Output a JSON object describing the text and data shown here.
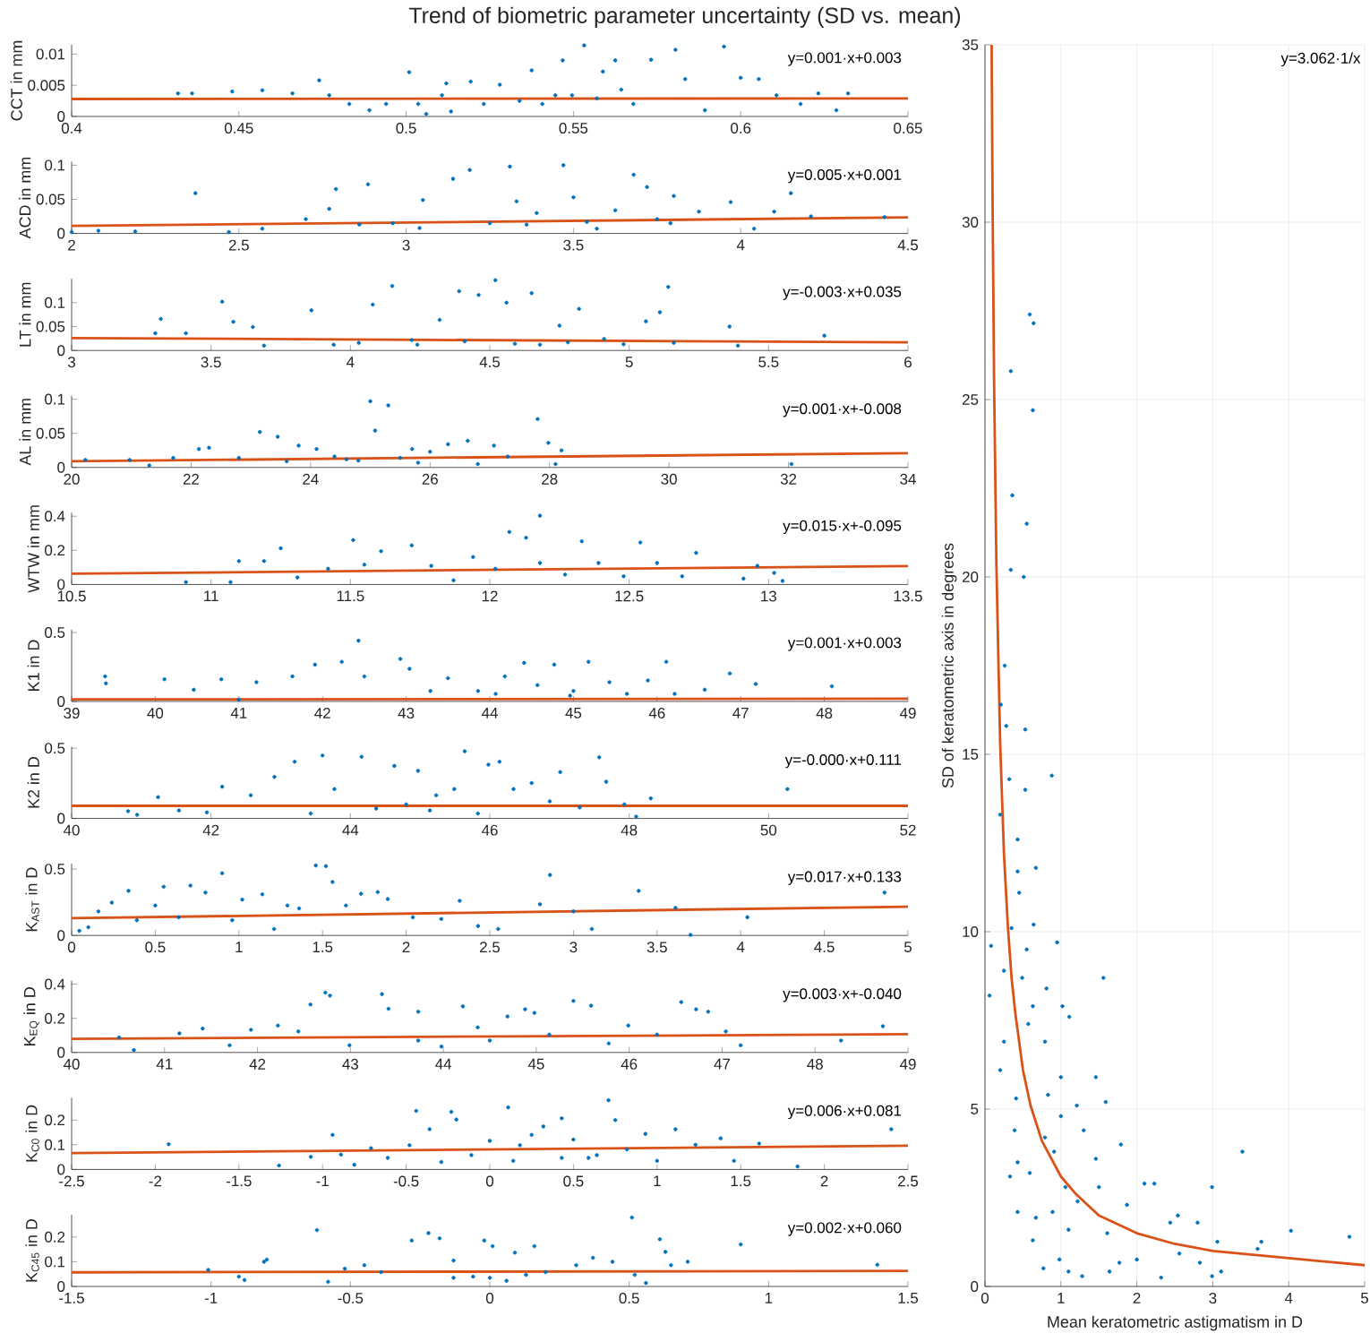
{
  "chart_data": [
    {
      "type": "scatter",
      "title": "Trend of biometric parameter uncertainty (SD vs. mean)",
      "ylabel": "CCT in mm",
      "annotations": [
        "y=0.001·x+0.003"
      ],
      "xlim": [
        0.4,
        0.65
      ],
      "xticks": [
        0.4,
        0.45,
        0.5,
        0.55,
        0.6,
        0.65
      ],
      "ylim": [
        0,
        0.0115
      ],
      "yticks": [
        0,
        0.005,
        0.01
      ],
      "series": [
        {
          "type": "scatter",
          "marker": "circle",
          "color": "#0072bd",
          "x": [
            0.4318,
            0.436,
            0.448,
            0.457,
            0.466,
            0.474,
            0.477,
            0.483,
            0.489,
            0.494,
            0.5009,
            0.506,
            0.512,
            0.5134,
            0.5193,
            0.5232,
            0.528,
            0.5375,
            0.5407,
            0.5468,
            0.5496,
            0.5532,
            0.5588,
            0.5625,
            0.5679,
            0.5732,
            0.5805,
            0.5834,
            0.5893,
            0.595,
            0.6,
            0.6054,
            0.6107,
            0.6179,
            0.6232,
            0.6286,
            0.6321,
            0.5339,
            0.5446,
            0.557,
            0.5643,
            0.5107,
            0.5036
          ],
          "values": [
            0.0037,
            0.0037,
            0.004,
            0.0042,
            0.0037,
            0.0058,
            0.0034,
            0.002,
            0.001,
            0.002,
            0.0071,
            0.0004,
            0.0053,
            0.0008,
            0.0056,
            0.002,
            0.0051,
            0.0074,
            0.002,
            0.009,
            0.0034,
            0.0114,
            0.0072,
            0.009,
            0.002,
            0.0091,
            0.0107,
            0.006,
            0.001,
            0.0112,
            0.0062,
            0.006,
            0.0034,
            0.002,
            0.0037,
            0.001,
            0.0037,
            0.0025,
            0.0034,
            0.0029,
            0.0043,
            0.0034,
            0.002
          ]
        },
        {
          "type": "line",
          "marker": "none",
          "color": "#d95319",
          "x": [
            0.4,
            0.65
          ],
          "values": [
            0.0028,
            0.0029
          ]
        }
      ]
    },
    {
      "type": "scatter",
      "ylabel": "ACD in mm",
      "annotations": [
        "y=0.005·x+0.001"
      ],
      "xlim": [
        2,
        4.5
      ],
      "xticks": [
        2,
        2.5,
        3,
        3.5,
        4,
        4.5
      ],
      "ylim": [
        0,
        0.105
      ],
      "yticks": [
        0,
        0.05,
        0.1
      ],
      "series": [
        {
          "type": "scatter",
          "marker": "circle",
          "color": "#0072bd",
          "x": [
            2.0,
            2.08,
            2.19,
            2.37,
            2.47,
            2.57,
            2.7,
            2.77,
            2.79,
            2.886,
            2.96,
            3.05,
            3.14,
            3.19,
            3.25,
            3.31,
            3.33,
            3.39,
            3.47,
            3.5,
            3.57,
            3.625,
            3.68,
            3.72,
            3.79,
            3.8,
            3.875,
            3.97,
            4.04,
            4.1,
            4.15,
            4.21,
            4.43,
            3.36,
            3.54,
            3.75,
            3.04,
            2.86
          ],
          "values": [
            0.002,
            0.004,
            0.003,
            0.059,
            0.002,
            0.007,
            0.021,
            0.036,
            0.065,
            0.072,
            0.015,
            0.049,
            0.08,
            0.093,
            0.015,
            0.098,
            0.047,
            0.03,
            0.1,
            0.053,
            0.007,
            0.034,
            0.086,
            0.068,
            0.015,
            0.055,
            0.032,
            0.046,
            0.007,
            0.032,
            0.059,
            0.025,
            0.024,
            0.013,
            0.017,
            0.021,
            0.008,
            0.013
          ]
        },
        {
          "type": "line",
          "marker": "none",
          "color": "#d95319",
          "x": [
            2,
            4.5
          ],
          "values": [
            0.011,
            0.0235
          ]
        }
      ]
    },
    {
      "type": "scatter",
      "ylabel": "LT in mm",
      "annotations": [
        "y=-0.003·x+0.035"
      ],
      "xlim": [
        3,
        6
      ],
      "xticks": [
        3,
        3.5,
        4,
        4.5,
        5,
        5.5,
        6
      ],
      "ylim": [
        0,
        0.15
      ],
      "yticks": [
        0,
        0.05,
        0.1
      ],
      "series": [
        {
          "type": "scatter",
          "marker": "circle",
          "color": "#0072bd",
          "x": [
            3.3,
            3.32,
            3.41,
            3.54,
            3.58,
            3.65,
            3.69,
            3.86,
            3.94,
            4.08,
            4.15,
            4.22,
            4.32,
            4.39,
            4.46,
            4.52,
            4.56,
            4.65,
            4.68,
            4.75,
            4.82,
            4.91,
            4.98,
            5.06,
            5.14,
            5.11,
            5.16,
            5.36,
            5.39,
            5.7,
            4.24,
            4.41,
            4.59,
            4.78,
            4.03
          ],
          "values": [
            0.036,
            0.066,
            0.036,
            0.102,
            0.06,
            0.049,
            0.01,
            0.084,
            0.012,
            0.096,
            0.135,
            0.022,
            0.064,
            0.124,
            0.116,
            0.147,
            0.1,
            0.12,
            0.012,
            0.052,
            0.087,
            0.024,
            0.013,
            0.061,
            0.133,
            0.08,
            0.016,
            0.05,
            0.01,
            0.031,
            0.012,
            0.019,
            0.014,
            0.017,
            0.016
          ]
        },
        {
          "type": "line",
          "marker": "none",
          "color": "#d95319",
          "x": [
            3,
            6
          ],
          "values": [
            0.026,
            0.017
          ]
        }
      ]
    },
    {
      "type": "scatter",
      "ylabel": "AL in mm",
      "annotations": [
        "y=0.001·x+-0.008"
      ],
      "xlim": [
        20,
        34
      ],
      "xticks": [
        20,
        22,
        24,
        26,
        28,
        30,
        32,
        34
      ],
      "ylim": [
        0,
        0.105
      ],
      "yticks": [
        0,
        0.05,
        0.1
      ],
      "series": [
        {
          "type": "scatter",
          "marker": "circle",
          "color": "#0072bd",
          "x": [
            20.23,
            20.97,
            21.3,
            21.7,
            22.13,
            22.3,
            22.8,
            23.15,
            23.45,
            23.8,
            24.1,
            24.4,
            24.8,
            25.0,
            25.08,
            25.3,
            25.7,
            26.0,
            26.3,
            26.63,
            26.8,
            27.07,
            27.3,
            27.8,
            27.98,
            28.1,
            28.2,
            32.05,
            23.6,
            24.6,
            25.5,
            25.8
          ],
          "values": [
            0.011,
            0.011,
            0.003,
            0.014,
            0.027,
            0.029,
            0.014,
            0.052,
            0.045,
            0.032,
            0.027,
            0.016,
            0.01,
            0.097,
            0.054,
            0.091,
            0.027,
            0.023,
            0.034,
            0.039,
            0.005,
            0.032,
            0.016,
            0.071,
            0.036,
            0.005,
            0.025,
            0.005,
            0.009,
            0.012,
            0.014,
            0.007
          ]
        },
        {
          "type": "line",
          "marker": "none",
          "color": "#d95319",
          "x": [
            20,
            34
          ],
          "values": [
            0.009,
            0.021
          ]
        }
      ]
    },
    {
      "type": "scatter",
      "ylabel": "WTW in mm",
      "annotations": [
        "y=0.015·x+-0.095"
      ],
      "xlim": [
        10.5,
        13.5
      ],
      "xticks": [
        10.5,
        11,
        11.5,
        12,
        12.5,
        13,
        13.5
      ],
      "ylim": [
        0,
        0.42
      ],
      "yticks": [
        0,
        0.2,
        0.4
      ],
      "series": [
        {
          "type": "scatter",
          "marker": "circle",
          "color": "#0072bd",
          "x": [
            10.91,
            11.07,
            11.1,
            11.19,
            11.25,
            11.31,
            11.42,
            11.51,
            11.55,
            11.61,
            11.72,
            11.79,
            11.87,
            11.94,
            12.02,
            12.07,
            12.13,
            12.18,
            12.18,
            12.27,
            12.33,
            12.39,
            12.48,
            12.54,
            12.6,
            12.69,
            12.74,
            12.91,
            13.02,
            13.05,
            12.96
          ],
          "values": [
            0.014,
            0.014,
            0.137,
            0.137,
            0.212,
            0.041,
            0.092,
            0.26,
            0.116,
            0.195,
            0.229,
            0.109,
            0.024,
            0.161,
            0.092,
            0.308,
            0.274,
            0.126,
            0.403,
            0.058,
            0.253,
            0.126,
            0.048,
            0.246,
            0.126,
            0.048,
            0.185,
            0.034,
            0.068,
            0.021,
            0.109
          ]
        },
        {
          "type": "line",
          "marker": "none",
          "color": "#d95319",
          "x": [
            10.5,
            13.5
          ],
          "values": [
            0.063,
            0.108
          ]
        }
      ]
    },
    {
      "type": "scatter",
      "ylabel": "K1 in D",
      "annotations": [
        "y=0.001·x+0.003"
      ],
      "xlim": [
        39,
        49
      ],
      "xticks": [
        39,
        40,
        41,
        42,
        43,
        44,
        45,
        46,
        47,
        48,
        49
      ],
      "ylim": [
        0,
        0.52
      ],
      "yticks": [
        0,
        0.5
      ],
      "series": [
        {
          "type": "scatter",
          "marker": "circle",
          "color": "#0072bd",
          "x": [
            39.4,
            39.41,
            40.11,
            40.46,
            40.79,
            41,
            41.21,
            41.64,
            41.91,
            42.23,
            42.43,
            42.5,
            42.93,
            43.04,
            43.29,
            43.5,
            43.86,
            44.18,
            44.41,
            44.57,
            44.77,
            44.96,
            45.18,
            45.43,
            45.64,
            45.89,
            46.11,
            46.21,
            46.57,
            46.87,
            47.18,
            48.09,
            44.07,
            45.0
          ],
          "values": [
            0.182,
            0.131,
            0.161,
            0.085,
            0.161,
            0.013,
            0.14,
            0.182,
            0.267,
            0.288,
            0.441,
            0.182,
            0.309,
            0.237,
            0.076,
            0.169,
            0.076,
            0.182,
            0.28,
            0.119,
            0.267,
            0.042,
            0.288,
            0.14,
            0.055,
            0.152,
            0.288,
            0.055,
            0.085,
            0.203,
            0.127,
            0.11,
            0.055,
            0.076
          ]
        },
        {
          "type": "line",
          "marker": "none",
          "color": "#d95319",
          "x": [
            39,
            49
          ],
          "values": [
            0.015,
            0.02
          ]
        }
      ]
    },
    {
      "type": "scatter",
      "ylabel": "K2 in D",
      "annotations": [
        "y=-0.000·x+0.111"
      ],
      "xlim": [
        40,
        52
      ],
      "xticks": [
        40,
        42,
        44,
        46,
        48,
        50,
        52
      ],
      "ylim": [
        0,
        0.51
      ],
      "yticks": [
        0,
        0.5
      ],
      "series": [
        {
          "type": "scatter",
          "marker": "circle",
          "color": "#0072bd",
          "x": [
            40.81,
            40.94,
            41.24,
            41.54,
            41.94,
            42.16,
            42.57,
            42.91,
            43.2,
            43.43,
            43.6,
            43.77,
            44.16,
            44.37,
            44.63,
            44.97,
            45.23,
            45.49,
            45.64,
            45.83,
            45.98,
            46.14,
            46.34,
            46.6,
            46.86,
            47.01,
            47.29,
            47.57,
            47.67,
            47.93,
            48.1,
            48.31,
            50.27,
            44.8,
            45.14
          ],
          "values": [
            0.052,
            0.026,
            0.152,
            0.057,
            0.043,
            0.226,
            0.165,
            0.296,
            0.404,
            0.035,
            0.448,
            0.209,
            0.439,
            0.07,
            0.374,
            0.339,
            0.165,
            0.209,
            0.478,
            0.035,
            0.383,
            0.404,
            0.209,
            0.252,
            0.122,
            0.33,
            0.078,
            0.435,
            0.261,
            0.1,
            0.013,
            0.143,
            0.209,
            0.1,
            0.057
          ]
        },
        {
          "type": "line",
          "marker": "none",
          "color": "#d95319",
          "x": [
            40,
            52
          ],
          "values": [
            0.09,
            0.09
          ]
        }
      ]
    },
    {
      "type": "scatter",
      "ylabel": "K$_{AST}$ in D",
      "annotations": [
        "y=0.017·x+0.133"
      ],
      "xlim": [
        0,
        5
      ],
      "xticks": [
        0,
        0.5,
        1,
        1.5,
        2,
        2.5,
        3,
        3.5,
        4,
        4.5,
        5
      ],
      "ylim": [
        0,
        0.54
      ],
      "yticks": [
        0,
        0.5
      ],
      "series": [
        {
          "type": "scatter",
          "marker": "circle",
          "color": "#0072bd",
          "x": [
            0.046,
            0.1,
            0.16,
            0.24,
            0.34,
            0.39,
            0.5,
            0.55,
            0.64,
            0.71,
            0.8,
            0.9,
            0.96,
            1.02,
            1.14,
            1.21,
            1.29,
            1.36,
            1.46,
            1.52,
            1.56,
            1.64,
            1.73,
            1.83,
            1.89,
            2.04,
            2.21,
            2.32,
            2.43,
            2.55,
            2.8,
            2.86,
            3.0,
            3.11,
            3.39,
            3.61,
            3.7,
            4.04,
            4.86
          ],
          "values": [
            0.035,
            0.062,
            0.181,
            0.248,
            0.336,
            0.115,
            0.226,
            0.367,
            0.137,
            0.376,
            0.323,
            0.469,
            0.115,
            0.27,
            0.31,
            0.049,
            0.226,
            0.204,
            0.527,
            0.522,
            0.403,
            0.226,
            0.314,
            0.327,
            0.274,
            0.137,
            0.124,
            0.261,
            0.071,
            0.049,
            0.235,
            0.456,
            0.181,
            0.049,
            0.336,
            0.208,
            0.004,
            0.137,
            0.323
          ]
        },
        {
          "type": "line",
          "marker": "none",
          "color": "#d95319",
          "x": [
            0,
            5
          ],
          "values": [
            0.13,
            0.217
          ]
        }
      ]
    },
    {
      "type": "scatter",
      "ylabel": "K$_{EQ}$ in D",
      "annotations": [
        "y=0.003·x+-0.040"
      ],
      "xlim": [
        40,
        49
      ],
      "xticks": [
        40,
        41,
        42,
        43,
        44,
        45,
        46,
        47,
        48,
        49
      ],
      "ylim": [
        0,
        0.42
      ],
      "yticks": [
        0,
        0.2,
        0.4
      ],
      "series": [
        {
          "type": "scatter",
          "marker": "circle",
          "color": "#0072bd",
          "x": [
            40.51,
            40.67,
            41.16,
            41.41,
            41.7,
            41.93,
            42.22,
            42.44,
            42.57,
            42.73,
            42.78,
            42.99,
            43.34,
            43.41,
            43.73,
            43.98,
            44.21,
            44.37,
            44.69,
            44.88,
            44.98,
            45.14,
            45.4,
            45.59,
            45.78,
            45.99,
            46.3,
            46.56,
            46.72,
            46.85,
            47.04,
            47.2,
            48.28,
            48.73,
            44.5,
            43.73
          ],
          "values": [
            0.088,
            0.014,
            0.112,
            0.14,
            0.042,
            0.133,
            0.158,
            0.123,
            0.281,
            0.351,
            0.333,
            0.042,
            0.342,
            0.256,
            0.239,
            0.035,
            0.27,
            0.147,
            0.211,
            0.253,
            0.232,
            0.105,
            0.302,
            0.274,
            0.053,
            0.158,
            0.105,
            0.295,
            0.253,
            0.239,
            0.123,
            0.042,
            0.07,
            0.154,
            0.07,
            0.07
          ]
        },
        {
          "type": "line",
          "marker": "none",
          "color": "#d95319",
          "x": [
            40,
            49
          ],
          "values": [
            0.08,
            0.107
          ]
        }
      ]
    },
    {
      "type": "scatter",
      "ylabel": "K$_{C0}$ in D",
      "annotations": [
        "y=0.006·x+0.081"
      ],
      "xlim": [
        -2.5,
        2.5
      ],
      "xticks": [
        -2.5,
        -2,
        -1.5,
        -1,
        -0.5,
        0,
        0.5,
        1,
        1.5,
        2,
        2.5
      ],
      "ylim": [
        0,
        0.29
      ],
      "yticks": [
        0,
        0.1,
        0.2
      ],
      "series": [
        {
          "type": "scatter",
          "marker": "circle",
          "color": "#0072bd",
          "x": [
            -1.92,
            -1.26,
            -1.07,
            -0.94,
            -0.89,
            -0.81,
            -0.71,
            -0.61,
            -0.48,
            -0.44,
            -0.36,
            -0.29,
            -0.23,
            -0.2,
            -0.11,
            0.0,
            0.11,
            0.18,
            0.25,
            0.32,
            0.43,
            0.5,
            0.59,
            0.71,
            0.75,
            0.82,
            0.93,
            1.0,
            1.11,
            1.23,
            1.38,
            1.46,
            1.61,
            1.84,
            2.4,
            0.14,
            0.43,
            0.64
          ],
          "values": [
            0.102,
            0.016,
            0.051,
            0.14,
            0.06,
            0.019,
            0.086,
            0.047,
            0.098,
            0.237,
            0.163,
            0.03,
            0.233,
            0.202,
            0.058,
            0.116,
            0.251,
            0.098,
            0.14,
            0.174,
            0.207,
            0.121,
            0.047,
            0.28,
            0.2,
            0.081,
            0.144,
            0.035,
            0.163,
            0.1,
            0.126,
            0.035,
            0.105,
            0.012,
            0.163,
            0.035,
            0.047,
            0.058
          ]
        },
        {
          "type": "line",
          "marker": "none",
          "color": "#d95319",
          "x": [
            -2.5,
            2.5
          ],
          "values": [
            0.066,
            0.096
          ]
        }
      ]
    },
    {
      "type": "scatter",
      "ylabel": "K$_{C45}$ in D",
      "annotations": [
        "y=0.002·x+0.060"
      ],
      "xlim": [
        -1.5,
        1.5
      ],
      "xticks": [
        -1.5,
        -1,
        -0.5,
        0,
        0.5,
        1,
        1.5
      ],
      "ylim": [
        0,
        0.29
      ],
      "yticks": [
        0,
        0.1,
        0.2
      ],
      "series": [
        {
          "type": "scatter",
          "marker": "circle",
          "color": "#0072bd",
          "x": [
            -1.01,
            -0.9,
            -0.88,
            -0.81,
            -0.8,
            -0.62,
            -0.58,
            -0.52,
            -0.45,
            -0.39,
            -0.28,
            -0.22,
            -0.18,
            -0.13,
            -0.06,
            -0.02,
            0.01,
            0.06,
            0.09,
            0.16,
            0.2,
            0.31,
            0.37,
            0.44,
            0.51,
            0.52,
            0.56,
            0.61,
            0.63,
            0.65,
            0.71,
            0.9,
            1.39,
            0.0,
            0.13,
            -0.13
          ],
          "values": [
            0.067,
            0.04,
            0.026,
            0.1,
            0.109,
            0.228,
            0.019,
            0.072,
            0.086,
            0.058,
            0.186,
            0.216,
            0.195,
            0.105,
            0.04,
            0.186,
            0.163,
            0.023,
            0.137,
            0.163,
            0.058,
            0.086,
            0.116,
            0.1,
            0.279,
            0.047,
            0.014,
            0.191,
            0.14,
            0.086,
            0.1,
            0.17,
            0.088,
            0.035,
            0.047,
            0.035
          ]
        },
        {
          "type": "line",
          "marker": "none",
          "color": "#d95319",
          "x": [
            -1.5,
            1.5
          ],
          "values": [
            0.057,
            0.063
          ]
        }
      ]
    },
    {
      "type": "scatter",
      "xlabel": "Mean keratometric astigmatism in D",
      "ylabel": "SD of keratometric axis in degrees",
      "annotations": [
        "y=3.062·1/x"
      ],
      "xlim": [
        0,
        5
      ],
      "xticks": [
        0,
        1,
        2,
        3,
        4,
        5
      ],
      "ylim": [
        0,
        35
      ],
      "yticks": [
        0,
        5,
        10,
        15,
        20,
        25,
        30,
        35
      ],
      "grid": true,
      "series": [
        {
          "type": "scatter",
          "marker": "circle",
          "color": "#0072bd",
          "x": [
            0.59,
            0.64,
            0.34,
            0.63,
            0.36,
            0.55,
            0.34,
            0.51,
            0.26,
            0.21,
            0.28,
            0.53,
            0.32,
            0.88,
            0.53,
            0.2,
            0.43,
            0.43,
            0.67,
            0.45,
            0.35,
            0.64,
            0.08,
            0.55,
            0.95,
            0.25,
            0.49,
            0.81,
            0.06,
            1.56,
            1.02,
            0.63,
            1.11,
            0.57,
            0.25,
            0.79,
            0.2,
            1.0,
            1.46,
            0.41,
            0.83,
            1.21,
            1.59,
            0.39,
            0.79,
            1.3,
            1.0,
            0.43,
            0.91,
            1.46,
            1.79,
            0.33,
            3.39,
            0.59,
            1.06,
            1.5,
            2.1,
            2.23,
            0.43,
            0.89,
            1.22,
            1.87,
            0.63,
            1.1,
            1.61,
            2.44,
            2.8,
            2.54,
            2.99,
            0.98,
            1.1,
            1.28,
            1.64,
            1.77,
            2.0,
            2.32,
            2.56,
            2.83,
            2.99,
            3.06,
            3.11,
            3.64,
            3.59,
            4.03,
            4.8,
            0.77,
            0.67
          ],
          "values": [
            27.4,
            27.15,
            25.8,
            24.7,
            22.3,
            21.5,
            20.2,
            20.0,
            17.5,
            16.4,
            15.8,
            15.7,
            14.3,
            14.4,
            14.0,
            13.3,
            12.6,
            11.7,
            11.8,
            11.1,
            10.1,
            10.2,
            9.6,
            9.5,
            9.7,
            8.9,
            8.7,
            8.4,
            8.2,
            8.7,
            7.9,
            7.9,
            7.6,
            7.4,
            6.9,
            6.9,
            6.1,
            5.9,
            5.9,
            5.3,
            5.4,
            5.1,
            5.2,
            4.4,
            4.2,
            4.4,
            4.8,
            3.5,
            3.8,
            3.6,
            4.0,
            3.1,
            3.8,
            3.2,
            2.8,
            2.8,
            2.9,
            2.9,
            2.1,
            2.1,
            2.4,
            2.3,
            1.3,
            1.6,
            1.5,
            1.8,
            1.8,
            2.0,
            2.8,
            0.76,
            0.42,
            0.29,
            0.42,
            0.67,
            0.76,
            0.25,
            0.93,
            0.67,
            0.29,
            1.26,
            0.42,
            1.26,
            1.06,
            1.57,
            1.4,
            0.51,
            1.94
          ]
        },
        {
          "type": "line",
          "marker": "none",
          "color": "#d95319",
          "x": [
            0.0875,
            0.1,
            0.12,
            0.15,
            0.2,
            0.25,
            0.3,
            0.35,
            0.4,
            0.5,
            0.6,
            0.75,
            1,
            1.2,
            1.5,
            2,
            2.5,
            3,
            3.5,
            4,
            4.5,
            5
          ],
          "values": [
            35.0,
            30.6,
            25.5,
            20.4,
            15.3,
            12.2,
            10.2,
            8.7,
            7.7,
            6.1,
            5.1,
            4.1,
            3.1,
            2.6,
            2.0,
            1.5,
            1.2,
            1.0,
            0.9,
            0.8,
            0.7,
            0.6
          ]
        }
      ]
    }
  ]
}
